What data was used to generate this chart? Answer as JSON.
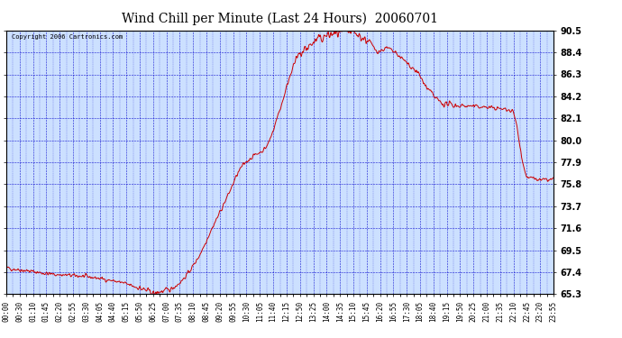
{
  "title": "Wind Chill per Minute (Last 24 Hours)  20060701",
  "copyright": "Copyright 2006 Cartronics.com",
  "line_color": "#cc0000",
  "bg_color": "#ffffff",
  "plot_bg_color": "#cce0ff",
  "grid_color": "#0000cc",
  "yticks": [
    65.3,
    67.4,
    69.5,
    71.6,
    73.7,
    75.8,
    77.9,
    80.0,
    82.1,
    84.2,
    86.3,
    88.4,
    90.5
  ],
  "ymin": 65.3,
  "ymax": 90.5,
  "xlabel_fontsize": 5.5,
  "ylabel_fontsize": 7.0,
  "title_fontsize": 10,
  "xtick_labels": [
    "00:00",
    "00:30",
    "01:10",
    "01:45",
    "02:20",
    "02:55",
    "03:30",
    "04:05",
    "04:40",
    "05:15",
    "05:50",
    "06:25",
    "07:00",
    "07:35",
    "08:10",
    "08:45",
    "09:20",
    "09:55",
    "10:30",
    "11:05",
    "11:40",
    "12:15",
    "12:50",
    "13:25",
    "14:00",
    "14:35",
    "15:10",
    "15:45",
    "16:20",
    "16:55",
    "17:30",
    "18:05",
    "18:40",
    "19:15",
    "19:50",
    "20:25",
    "21:00",
    "21:35",
    "22:10",
    "22:45",
    "23:20",
    "23:55"
  ],
  "curve_keypoints_x": [
    0,
    60,
    120,
    200,
    290,
    355,
    385,
    390,
    400,
    420,
    450,
    500,
    540,
    580,
    620,
    650,
    680,
    720,
    760,
    790,
    830,
    870,
    900,
    950,
    980,
    1000,
    1020,
    1050,
    1080,
    1110,
    1150,
    1200,
    1250,
    1300,
    1330,
    1370,
    1410,
    1440
  ],
  "curve_keypoints_y": [
    67.8,
    67.5,
    67.2,
    67.0,
    66.5,
    65.8,
    65.4,
    65.3,
    65.5,
    65.6,
    66.2,
    68.5,
    71.5,
    74.5,
    77.5,
    78.5,
    79.2,
    83.0,
    87.5,
    88.8,
    89.8,
    90.2,
    90.3,
    89.5,
    88.5,
    88.8,
    88.4,
    87.5,
    86.5,
    84.8,
    83.5,
    83.3,
    83.2,
    83.0,
    82.8,
    76.5,
    76.2,
    76.3
  ]
}
